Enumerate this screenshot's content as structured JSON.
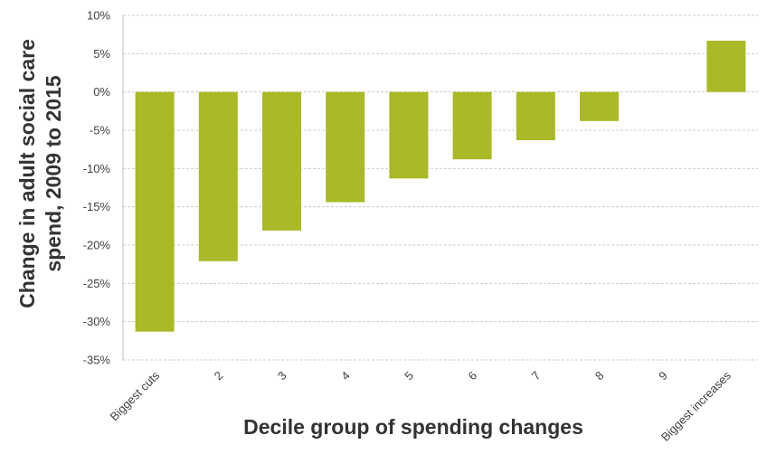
{
  "chart_data": {
    "type": "bar",
    "xlabel": "Decile group of spending changes",
    "ylabel_lines": [
      "Change in adult social care",
      "spend, 2009 to 2015"
    ],
    "categories": [
      "Biggest cuts",
      "2",
      "3",
      "4",
      "5",
      "6",
      "7",
      "8",
      "9",
      "Biggest increases"
    ],
    "values": [
      -31.3,
      -22.1,
      -18.1,
      -14.4,
      -11.3,
      -8.8,
      -6.3,
      -3.8,
      0.0,
      6.7
    ],
    "ylim": [
      -35,
      10
    ],
    "yticks": [
      10,
      5,
      0,
      -5,
      -10,
      -15,
      -20,
      -25,
      -30,
      -35
    ],
    "ytick_labels": [
      "10%",
      "5%",
      "0%",
      "-5%",
      "-10%",
      "-15%",
      "-20%",
      "-25%",
      "-30%",
      "-35%"
    ],
    "grid": true,
    "colors": {
      "bar": "#a9b927",
      "grid": "#cccccc",
      "axis": "#bfbfbf"
    }
  }
}
